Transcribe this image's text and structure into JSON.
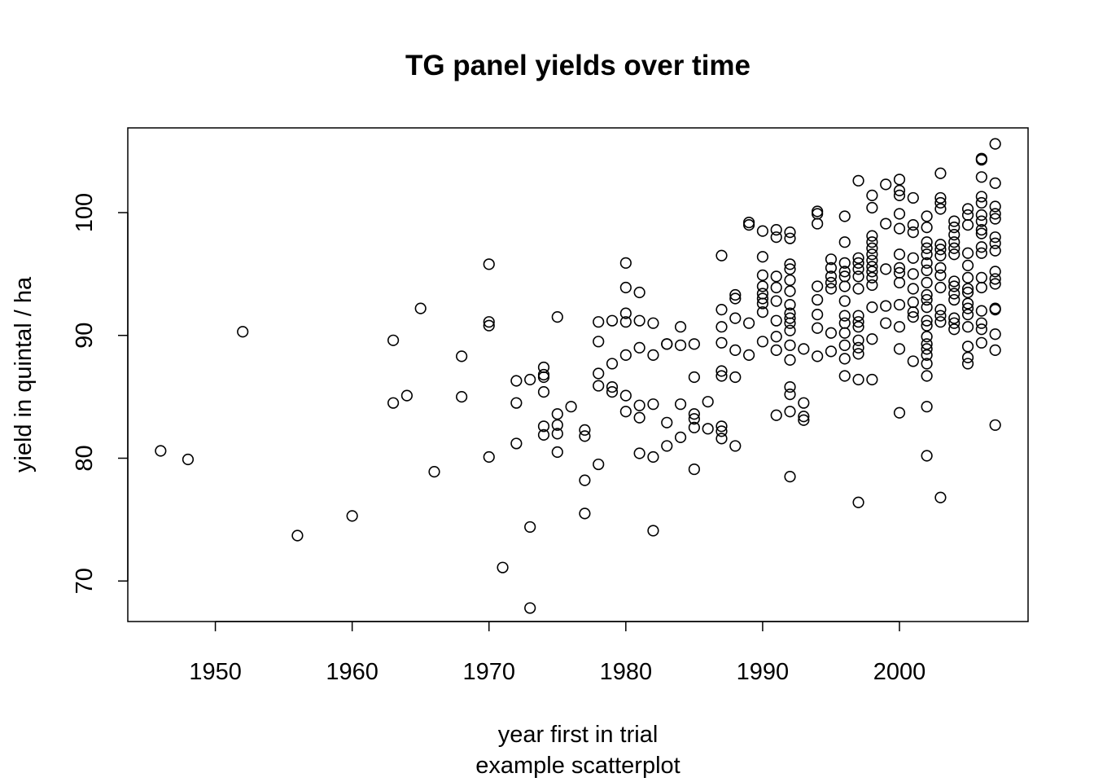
{
  "chart_data": {
    "type": "scatter",
    "title": "TG panel yields over time",
    "xlabel": "year first in trial",
    "subtitle": "example scatterplot",
    "ylabel": "yield in quintal / ha",
    "xlim": [
      1943.6,
      2009.4
    ],
    "ylim": [
      66.7,
      106.9
    ],
    "xticks": [
      1950,
      1960,
      1970,
      1980,
      1990,
      2000
    ],
    "yticks": [
      70,
      80,
      90,
      100
    ],
    "grid": false,
    "marker": "open-circle",
    "points": [
      [
        1946,
        80.6
      ],
      [
        1948,
        79.9
      ],
      [
        1952,
        90.3
      ],
      [
        1956,
        73.7
      ],
      [
        1960,
        75.3
      ],
      [
        1963,
        89.6
      ],
      [
        1963,
        84.5
      ],
      [
        1964,
        85.1
      ],
      [
        1965,
        92.2
      ],
      [
        1966,
        78.9
      ],
      [
        1968,
        88.3
      ],
      [
        1968,
        85.0
      ],
      [
        1970,
        95.8
      ],
      [
        1970,
        91.1
      ],
      [
        1970,
        90.8
      ],
      [
        1970,
        80.1
      ],
      [
        1971,
        71.1
      ],
      [
        1972,
        86.3
      ],
      [
        1972,
        84.5
      ],
      [
        1972,
        81.2
      ],
      [
        1973,
        86.4
      ],
      [
        1973,
        74.4
      ],
      [
        1973,
        67.8
      ],
      [
        1974,
        87.4
      ],
      [
        1974,
        86.8
      ],
      [
        1974,
        86.6
      ],
      [
        1974,
        85.4
      ],
      [
        1974,
        82.6
      ],
      [
        1974,
        81.9
      ],
      [
        1975,
        91.5
      ],
      [
        1975,
        83.6
      ],
      [
        1975,
        82.7
      ],
      [
        1975,
        82.0
      ],
      [
        1975,
        80.5
      ],
      [
        1976,
        84.2
      ],
      [
        1977,
        82.3
      ],
      [
        1977,
        81.8
      ],
      [
        1977,
        78.2
      ],
      [
        1977,
        75.5
      ],
      [
        1978,
        91.1
      ],
      [
        1978,
        89.5
      ],
      [
        1978,
        86.9
      ],
      [
        1978,
        85.9
      ],
      [
        1978,
        79.5
      ],
      [
        1979,
        91.2
      ],
      [
        1979,
        87.7
      ],
      [
        1979,
        85.8
      ],
      [
        1979,
        85.4
      ],
      [
        1980,
        95.9
      ],
      [
        1980,
        93.9
      ],
      [
        1980,
        91.8
      ],
      [
        1980,
        91.1
      ],
      [
        1980,
        88.4
      ],
      [
        1980,
        85.1
      ],
      [
        1980,
        83.8
      ],
      [
        1981,
        93.5
      ],
      [
        1981,
        91.2
      ],
      [
        1981,
        89.0
      ],
      [
        1981,
        84.3
      ],
      [
        1981,
        83.3
      ],
      [
        1981,
        80.4
      ],
      [
        1982,
        91.0
      ],
      [
        1982,
        88.4
      ],
      [
        1982,
        84.4
      ],
      [
        1982,
        80.1
      ],
      [
        1982,
        74.1
      ],
      [
        1983,
        89.3
      ],
      [
        1983,
        89.3
      ],
      [
        1983,
        82.9
      ],
      [
        1983,
        81.0
      ],
      [
        1984,
        90.7
      ],
      [
        1984,
        89.2
      ],
      [
        1984,
        84.4
      ],
      [
        1984,
        81.7
      ],
      [
        1985,
        89.3
      ],
      [
        1985,
        86.6
      ],
      [
        1985,
        83.6
      ],
      [
        1985,
        83.2
      ],
      [
        1985,
        82.5
      ],
      [
        1985,
        79.1
      ],
      [
        1986,
        84.6
      ],
      [
        1986,
        82.4
      ],
      [
        1987,
        96.5
      ],
      [
        1987,
        92.1
      ],
      [
        1987,
        90.7
      ],
      [
        1987,
        89.4
      ],
      [
        1987,
        87.1
      ],
      [
        1987,
        86.7
      ],
      [
        1987,
        82.6
      ],
      [
        1987,
        82.2
      ],
      [
        1987,
        81.6
      ],
      [
        1988,
        93.3
      ],
      [
        1988,
        93.0
      ],
      [
        1988,
        91.4
      ],
      [
        1988,
        88.8
      ],
      [
        1988,
        86.6
      ],
      [
        1988,
        81.0
      ],
      [
        1989,
        99.2
      ],
      [
        1989,
        99.0
      ],
      [
        1989,
        91.0
      ],
      [
        1989,
        88.4
      ],
      [
        1990,
        98.5
      ],
      [
        1990,
        96.4
      ],
      [
        1990,
        94.9
      ],
      [
        1990,
        94.0
      ],
      [
        1990,
        93.4
      ],
      [
        1990,
        93.0
      ],
      [
        1990,
        92.6
      ],
      [
        1990,
        91.9
      ],
      [
        1990,
        89.5
      ],
      [
        1991,
        98.6
      ],
      [
        1991,
        98.0
      ],
      [
        1991,
        94.8
      ],
      [
        1991,
        93.9
      ],
      [
        1991,
        92.8
      ],
      [
        1991,
        91.2
      ],
      [
        1991,
        89.9
      ],
      [
        1991,
        88.8
      ],
      [
        1991,
        83.5
      ],
      [
        1992,
        98.4
      ],
      [
        1992,
        97.9
      ],
      [
        1992,
        95.8
      ],
      [
        1992,
        95.4
      ],
      [
        1992,
        94.5
      ],
      [
        1992,
        93.6
      ],
      [
        1992,
        92.5
      ],
      [
        1992,
        91.8
      ],
      [
        1992,
        91.4
      ],
      [
        1992,
        91.0
      ],
      [
        1992,
        90.4
      ],
      [
        1992,
        89.2
      ],
      [
        1992,
        88.0
      ],
      [
        1992,
        85.8
      ],
      [
        1992,
        85.2
      ],
      [
        1992,
        83.8
      ],
      [
        1992,
        78.5
      ],
      [
        1993,
        88.9
      ],
      [
        1993,
        84.5
      ],
      [
        1993,
        83.4
      ],
      [
        1993,
        83.1
      ],
      [
        1994,
        100.1
      ],
      [
        1994,
        99.9
      ],
      [
        1994,
        99.1
      ],
      [
        1994,
        94.0
      ],
      [
        1994,
        92.9
      ],
      [
        1994,
        91.7
      ],
      [
        1994,
        90.6
      ],
      [
        1994,
        88.3
      ],
      [
        1995,
        96.2
      ],
      [
        1995,
        95.5
      ],
      [
        1995,
        94.8
      ],
      [
        1995,
        94.3
      ],
      [
        1995,
        93.8
      ],
      [
        1995,
        90.2
      ],
      [
        1995,
        88.7
      ],
      [
        1996,
        99.7
      ],
      [
        1996,
        97.6
      ],
      [
        1996,
        95.9
      ],
      [
        1996,
        95.2
      ],
      [
        1996,
        94.8
      ],
      [
        1996,
        94.0
      ],
      [
        1996,
        92.8
      ],
      [
        1996,
        91.6
      ],
      [
        1996,
        91.0
      ],
      [
        1996,
        90.2
      ],
      [
        1996,
        89.2
      ],
      [
        1996,
        88.1
      ],
      [
        1996,
        86.7
      ],
      [
        1997,
        102.6
      ],
      [
        1997,
        96.3
      ],
      [
        1997,
        95.9
      ],
      [
        1997,
        95.4
      ],
      [
        1997,
        94.8
      ],
      [
        1997,
        93.8
      ],
      [
        1997,
        91.6
      ],
      [
        1997,
        91.1
      ],
      [
        1997,
        90.7
      ],
      [
        1997,
        89.6
      ],
      [
        1997,
        89.0
      ],
      [
        1997,
        88.5
      ],
      [
        1997,
        86.4
      ],
      [
        1997,
        76.4
      ],
      [
        1998,
        101.4
      ],
      [
        1998,
        100.4
      ],
      [
        1998,
        98.1
      ],
      [
        1998,
        97.6
      ],
      [
        1998,
        97.1
      ],
      [
        1998,
        96.6
      ],
      [
        1998,
        96.1
      ],
      [
        1998,
        95.6
      ],
      [
        1998,
        95.2
      ],
      [
        1998,
        94.7
      ],
      [
        1998,
        94.1
      ],
      [
        1998,
        92.3
      ],
      [
        1998,
        89.7
      ],
      [
        1998,
        86.4
      ],
      [
        1999,
        102.3
      ],
      [
        1999,
        99.1
      ],
      [
        1999,
        95.4
      ],
      [
        1999,
        92.4
      ],
      [
        1999,
        91.0
      ],
      [
        2000,
        102.7
      ],
      [
        2000,
        101.8
      ],
      [
        2000,
        101.4
      ],
      [
        2000,
        99.9
      ],
      [
        2000,
        98.7
      ],
      [
        2000,
        96.6
      ],
      [
        2000,
        95.5
      ],
      [
        2000,
        95.1
      ],
      [
        2000,
        94.3
      ],
      [
        2000,
        92.5
      ],
      [
        2000,
        90.7
      ],
      [
        2000,
        88.9
      ],
      [
        2000,
        83.7
      ],
      [
        2001,
        101.2
      ],
      [
        2001,
        99.0
      ],
      [
        2001,
        98.4
      ],
      [
        2001,
        96.3
      ],
      [
        2001,
        95.0
      ],
      [
        2001,
        93.8
      ],
      [
        2001,
        92.7
      ],
      [
        2001,
        91.9
      ],
      [
        2001,
        91.5
      ],
      [
        2001,
        87.9
      ],
      [
        2002,
        99.7
      ],
      [
        2002,
        98.8
      ],
      [
        2002,
        97.6
      ],
      [
        2002,
        97.1
      ],
      [
        2002,
        96.6
      ],
      [
        2002,
        95.9
      ],
      [
        2002,
        95.3
      ],
      [
        2002,
        94.3
      ],
      [
        2002,
        93.3
      ],
      [
        2002,
        92.9
      ],
      [
        2002,
        92.3
      ],
      [
        2002,
        91.2
      ],
      [
        2002,
        90.8
      ],
      [
        2002,
        89.9
      ],
      [
        2002,
        89.3
      ],
      [
        2002,
        88.9
      ],
      [
        2002,
        88.4
      ],
      [
        2002,
        87.7
      ],
      [
        2002,
        86.7
      ],
      [
        2002,
        84.2
      ],
      [
        2002,
        80.2
      ],
      [
        2003,
        103.2
      ],
      [
        2003,
        101.2
      ],
      [
        2003,
        100.8
      ],
      [
        2003,
        100.3
      ],
      [
        2003,
        97.4
      ],
      [
        2003,
        97.0
      ],
      [
        2003,
        96.5
      ],
      [
        2003,
        95.5
      ],
      [
        2003,
        94.9
      ],
      [
        2003,
        93.9
      ],
      [
        2003,
        92.1
      ],
      [
        2003,
        91.6
      ],
      [
        2003,
        91.1
      ],
      [
        2003,
        76.8
      ],
      [
        2004,
        99.3
      ],
      [
        2004,
        98.8
      ],
      [
        2004,
        98.2
      ],
      [
        2004,
        97.6
      ],
      [
        2004,
        97.1
      ],
      [
        2004,
        96.6
      ],
      [
        2004,
        94.4
      ],
      [
        2004,
        94.0
      ],
      [
        2004,
        93.4
      ],
      [
        2004,
        92.9
      ],
      [
        2004,
        91.4
      ],
      [
        2004,
        91.0
      ],
      [
        2004,
        90.5
      ],
      [
        2005,
        100.3
      ],
      [
        2005,
        99.8
      ],
      [
        2005,
        99.0
      ],
      [
        2005,
        96.7
      ],
      [
        2005,
        95.7
      ],
      [
        2005,
        94.7
      ],
      [
        2005,
        93.8
      ],
      [
        2005,
        93.5
      ],
      [
        2005,
        92.6
      ],
      [
        2005,
        92.2
      ],
      [
        2005,
        91.7
      ],
      [
        2005,
        90.7
      ],
      [
        2005,
        89.1
      ],
      [
        2005,
        88.2
      ],
      [
        2005,
        87.7
      ],
      [
        2006,
        104.3
      ],
      [
        2006,
        104.4
      ],
      [
        2006,
        102.9
      ],
      [
        2006,
        101.3
      ],
      [
        2006,
        100.8
      ],
      [
        2006,
        99.8
      ],
      [
        2006,
        99.3
      ],
      [
        2006,
        98.6
      ],
      [
        2006,
        98.3
      ],
      [
        2006,
        97.2
      ],
      [
        2006,
        96.7
      ],
      [
        2006,
        94.7
      ],
      [
        2006,
        93.9
      ],
      [
        2006,
        92.0
      ],
      [
        2006,
        91.0
      ],
      [
        2006,
        90.5
      ],
      [
        2006,
        89.4
      ],
      [
        2007,
        105.6
      ],
      [
        2007,
        102.4
      ],
      [
        2007,
        100.5
      ],
      [
        2007,
        99.9
      ],
      [
        2007,
        99.5
      ],
      [
        2007,
        98.0
      ],
      [
        2007,
        97.5
      ],
      [
        2007,
        96.9
      ],
      [
        2007,
        95.2
      ],
      [
        2007,
        94.6
      ],
      [
        2007,
        94.2
      ],
      [
        2007,
        92.2
      ],
      [
        2007,
        92.1
      ],
      [
        2007,
        90.1
      ],
      [
        2007,
        88.8
      ],
      [
        2007,
        82.7
      ]
    ]
  }
}
